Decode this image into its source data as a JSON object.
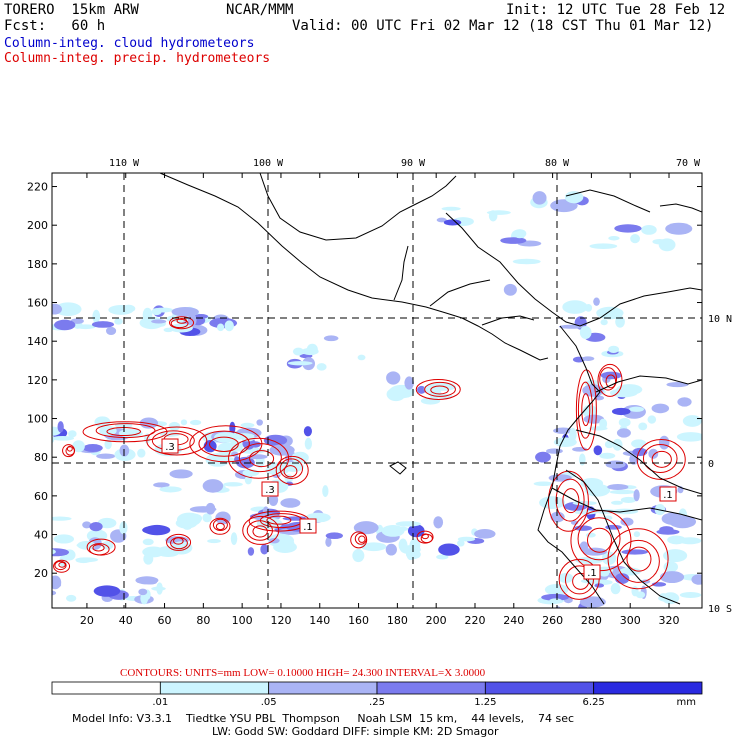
{
  "header": {
    "model": "TORERO  15km ARW",
    "org": "NCAR/MMM",
    "init": "Init: 12 UTC Tue 28 Feb 12",
    "fcst": "Fcst:   60 h",
    "valid": "Valid: 00 UTC Fri 02 Mar 12 (18 CST Thu 01 Mar 12)",
    "field1": "Column-integ. cloud hydrometeors",
    "field2": "Column-integ. precip. hydrometeors",
    "field1_color": "#0000cc",
    "field2_color": "#dd0000"
  },
  "map": {
    "lon_labels": [
      "110 W",
      "100 W",
      "90 W",
      "80 W",
      "70 W"
    ],
    "lat_labels": [
      "10 N",
      "0",
      "10 S"
    ],
    "y_ticks": [
      220,
      200,
      180,
      160,
      140,
      120,
      100,
      80,
      60,
      40,
      20
    ],
    "x_ticks": [
      20,
      40,
      60,
      80,
      100,
      120,
      140,
      160,
      180,
      200,
      220,
      240,
      260,
      280,
      300,
      320
    ],
    "contour_boxes": [
      ".3",
      ".3",
      ".1",
      ".1",
      ".1"
    ],
    "colors": {
      "shade1": "#ccf5ff",
      "shade2": "#aab4f5",
      "shade3": "#7b7bee",
      "shade4": "#5252e8",
      "shade5": "#2a2ae0",
      "contour": "#dd0000",
      "coast": "#000000"
    }
  },
  "contours_info": {
    "label": "CONTOURS:  UNITS=mm  LOW= 0.10000      HIGH=  24.300      INTERVAL=X  3.0000"
  },
  "colorbar": {
    "levels": [
      ".01",
      ".05",
      ".25",
      "1.25",
      "6.25"
    ],
    "unit": "mm",
    "colors": [
      "#ffffff",
      "#ccf5ff",
      "#aab4f5",
      "#7b7bee",
      "#5252e8",
      "#2a2ae0"
    ]
  },
  "footer": {
    "line1": "Model Info: V3.3.1    Tiedtke YSU PBL  Thompson     Noah LSM  15 km,    44 levels,    74 sec",
    "line2": "LW: Godd SW: Goddard DIFF: simple KM: 2D Smagor"
  }
}
